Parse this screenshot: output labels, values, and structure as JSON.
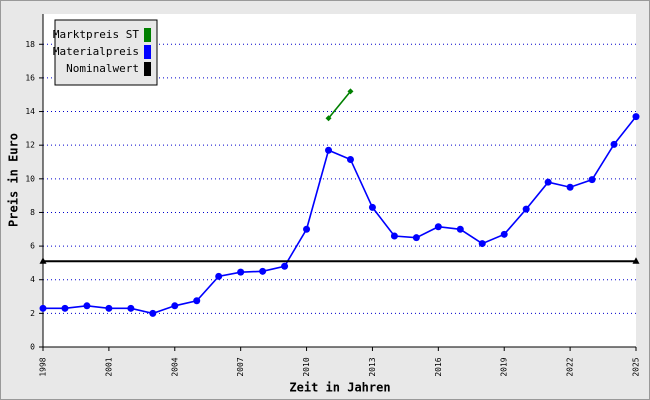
{
  "chart_data": {
    "type": "line",
    "x_label": "Zeit in Jahren",
    "y_label": "Preis in Euro",
    "x": [
      1998,
      1999,
      2000,
      2001,
      2002,
      2003,
      2004,
      2005,
      2006,
      2007,
      2008,
      2009,
      2010,
      2011,
      2012,
      2013,
      2014,
      2015,
      2016,
      2017,
      2018,
      2019,
      2020,
      2021,
      2022,
      2023,
      2024,
      2025
    ],
    "series": [
      {
        "name": "Marktpreis ST",
        "color": "#008000",
        "values": [
          null,
          null,
          null,
          null,
          null,
          null,
          null,
          null,
          null,
          null,
          null,
          null,
          null,
          13.6,
          15.2,
          null,
          null,
          null,
          null,
          null,
          null,
          null,
          null,
          null,
          null,
          null,
          null,
          null
        ]
      },
      {
        "name": "Materialpreis",
        "color": "#0000ff",
        "values": [
          2.3,
          2.3,
          2.45,
          2.3,
          2.3,
          2.0,
          2.45,
          2.75,
          4.2,
          4.45,
          4.5,
          4.8,
          7.0,
          11.7,
          11.15,
          8.3,
          6.6,
          6.5,
          7.15,
          7.0,
          6.15,
          6.7,
          8.2,
          9.8,
          9.5,
          9.95,
          12.05,
          13.7
        ]
      },
      {
        "name": "Nominalwert",
        "color": "#000000",
        "values": [
          5.1,
          5.1,
          5.1,
          5.1,
          5.1,
          5.1,
          5.1,
          5.1,
          5.1,
          5.1,
          5.1,
          5.1,
          5.1,
          5.1,
          5.1,
          5.1,
          5.1,
          5.1,
          5.1,
          5.1,
          5.1,
          5.1,
          5.1,
          5.1,
          5.1,
          5.1,
          5.1,
          5.1
        ]
      }
    ],
    "xlim": [
      1998,
      2025
    ],
    "xticks": [
      1998,
      2001,
      2004,
      2007,
      2010,
      2013,
      2016,
      2019,
      2022,
      2025
    ],
    "ylim": [
      0,
      19.8
    ],
    "yticks": [
      0,
      2,
      4,
      6,
      8,
      10,
      12,
      14,
      16,
      18
    ],
    "grid": true,
    "legend": "top-left"
  }
}
